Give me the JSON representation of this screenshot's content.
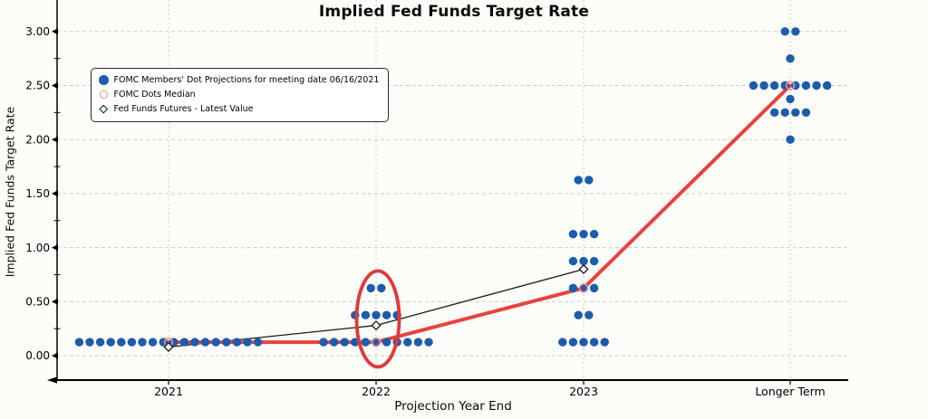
{
  "chart_data": {
    "type": "scatter",
    "title": "Implied Fed Funds Target Rate",
    "xlabel": "Projection Year End",
    "ylabel": "Implied Fed Funds Target Rate",
    "categories": [
      "2021",
      "2022",
      "2023",
      "Longer Term"
    ],
    "y_ticks": [
      "0.00",
      "0.50",
      "1.00",
      "1.50",
      "2.00",
      "2.50",
      "3.00"
    ],
    "y_minor_tick_step": 0.25,
    "ylim": [
      -0.23,
      3.29
    ],
    "grid": "dashed",
    "legend_position": "upper-left",
    "legend": [
      {
        "marker": "filled-dot",
        "label": "FOMC Members' Dot Projections for meeting date 06/16/2021"
      },
      {
        "marker": "open-circle",
        "label": "FOMC Dots Median"
      },
      {
        "marker": "open-diamond",
        "label": "Fed Funds Futures - Latest Value"
      }
    ],
    "series": [
      {
        "name": "FOMC Members' Dot Projections for meeting date 06/16/2021",
        "type": "dot-plot",
        "points": [
          {
            "category": "2021",
            "value": 0.125,
            "count": 18
          },
          {
            "category": "2022",
            "value": 0.125,
            "count": 11
          },
          {
            "category": "2022",
            "value": 0.375,
            "count": 5
          },
          {
            "category": "2022",
            "value": 0.625,
            "count": 2
          },
          {
            "category": "2023",
            "value": 0.125,
            "count": 5
          },
          {
            "category": "2023",
            "value": 0.375,
            "count": 2
          },
          {
            "category": "2023",
            "value": 0.625,
            "count": 3
          },
          {
            "category": "2023",
            "value": 0.875,
            "count": 3
          },
          {
            "category": "2023",
            "value": 1.125,
            "count": 3
          },
          {
            "category": "2023",
            "value": 1.625,
            "count": 2
          },
          {
            "category": "Longer Term",
            "value": 2.0,
            "count": 1
          },
          {
            "category": "Longer Term",
            "value": 2.25,
            "count": 4
          },
          {
            "category": "Longer Term",
            "value": 2.375,
            "count": 1
          },
          {
            "category": "Longer Term",
            "value": 2.5,
            "count": 8
          },
          {
            "category": "Longer Term",
            "value": 2.75,
            "count": 1
          },
          {
            "category": "Longer Term",
            "value": 3.0,
            "count": 2
          }
        ]
      },
      {
        "name": "FOMC Dots Median",
        "type": "line-with-open-circle-markers",
        "values": [
          0.125,
          0.125,
          0.625,
          2.5
        ]
      },
      {
        "name": "Fed Funds Futures - Latest Value",
        "type": "line-with-open-diamond-markers",
        "categories_covered": [
          "2021",
          "2022",
          "2023"
        ],
        "values": [
          0.08,
          0.28,
          0.8
        ]
      }
    ],
    "annotation": {
      "shape": "ellipse",
      "category": "2022",
      "center_value": 0.34,
      "note": "red ellipse highlighting the 2022 dot column"
    },
    "colors": {
      "dot": "#1d5caa",
      "median_line": "#e8423e",
      "median_marker_edge": "#f2918c",
      "futures": "#1a1a1a",
      "grid": "#cbcbcb",
      "axis": "#000000",
      "annotation": "#df3838",
      "background": "#fcfcf9"
    }
  }
}
